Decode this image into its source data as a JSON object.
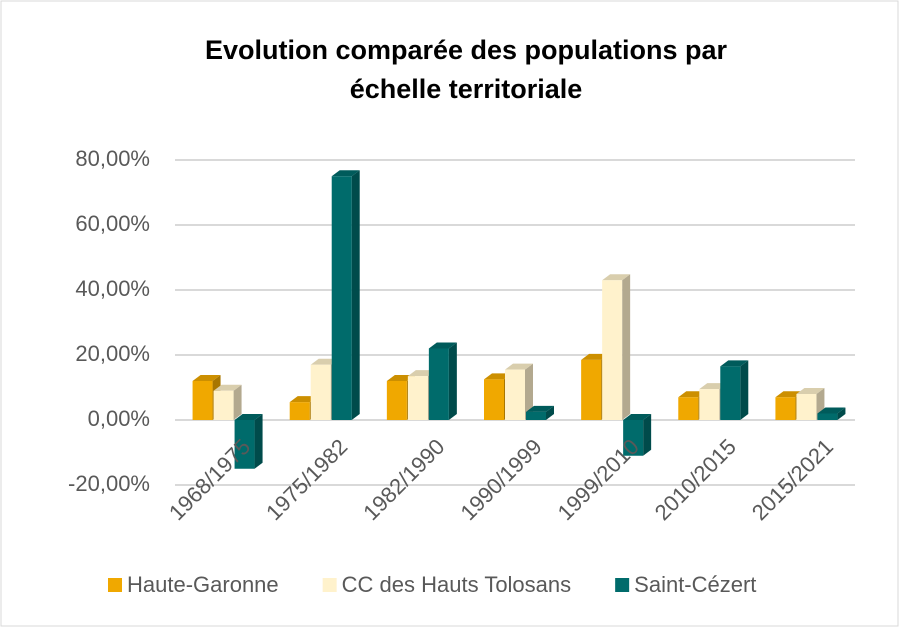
{
  "chart_data": {
    "type": "bar",
    "title": [
      "Evolution comparée des populations par",
      "échelle territoriale"
    ],
    "categories": [
      "1968/1975",
      "1975/1982",
      "1982/1990",
      "1990/1999",
      "1999/2010",
      "2010/2015",
      "2015/2021"
    ],
    "series": [
      {
        "name": "Haute-Garonne",
        "color": "#f0a800",
        "values": [
          12,
          5.5,
          12,
          12.5,
          18.5,
          7,
          7
        ]
      },
      {
        "name": "CC des Hauts Tolosans",
        "color": "#fff2cc",
        "values": [
          9,
          17,
          13.5,
          15.5,
          43,
          9.5,
          8
        ]
      },
      {
        "name": "Saint-Cézert",
        "color": "#006b6b",
        "values": [
          -15,
          75,
          22,
          2.5,
          -11,
          16.5,
          2
        ]
      }
    ],
    "ylim": [
      -20,
      80
    ],
    "yticks": [
      {
        "value": -20,
        "label": "-20,00%"
      },
      {
        "value": 0,
        "label": "0,00%"
      },
      {
        "value": 20,
        "label": "20,00%"
      },
      {
        "value": 40,
        "label": "40,00%"
      },
      {
        "value": 60,
        "label": "60,00%"
      },
      {
        "value": 80,
        "label": "80,00%"
      }
    ],
    "grid": true,
    "legend": "bottom"
  }
}
